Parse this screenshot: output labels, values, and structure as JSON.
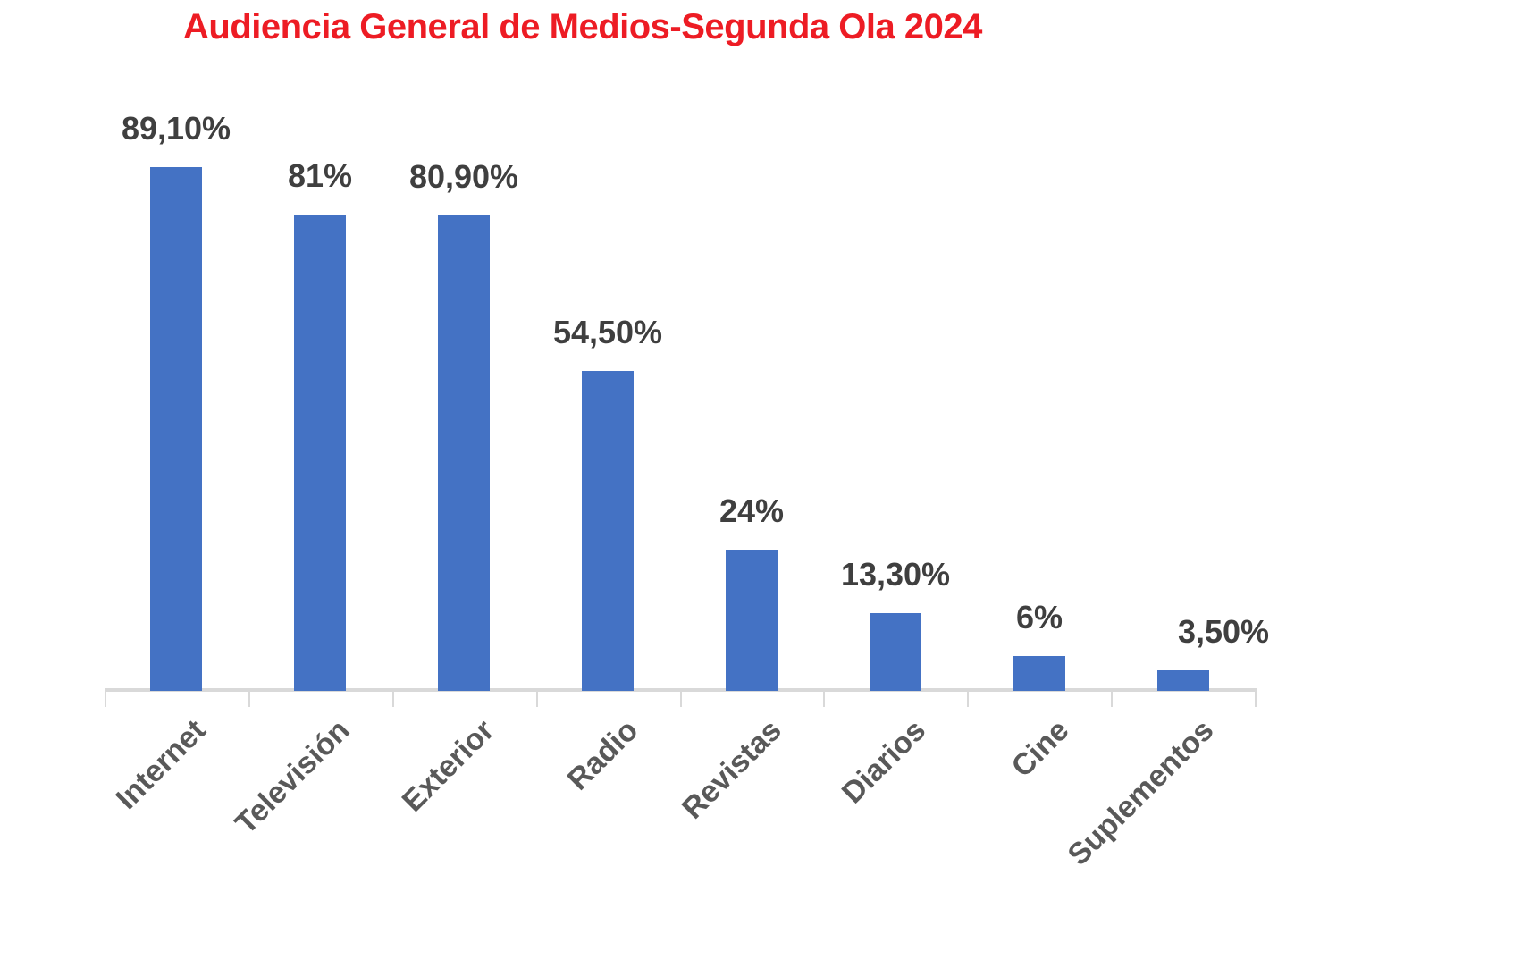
{
  "chart_data": {
    "type": "bar",
    "title": "Audiencia General de Medios-Segunda Ola 2024",
    "categories": [
      "Internet",
      "Televisión",
      "Exterior",
      "Radio",
      "Revistas",
      "Diarios",
      "Cine",
      "Suplementos"
    ],
    "values": [
      89.1,
      81,
      80.9,
      54.5,
      24,
      13.3,
      6,
      3.5
    ],
    "value_labels": [
      "89,10%",
      "81%",
      "80,90%",
      "54,50%",
      "24%",
      "13,30%",
      "6%",
      "3,50%"
    ],
    "series_name": "Audiencia",
    "xlabel": "",
    "ylabel": "",
    "ylim": [
      0,
      100
    ],
    "grid": false,
    "legend_position": "none",
    "y_axis_visible": false,
    "x_axis_visible": true,
    "colors": {
      "bar": "#4472C4",
      "title": "#ED1C24",
      "value_label": "#3F3F3F",
      "category_label": "#595959",
      "axis": "#D9D9D9",
      "background": "#FFFFFF"
    }
  }
}
